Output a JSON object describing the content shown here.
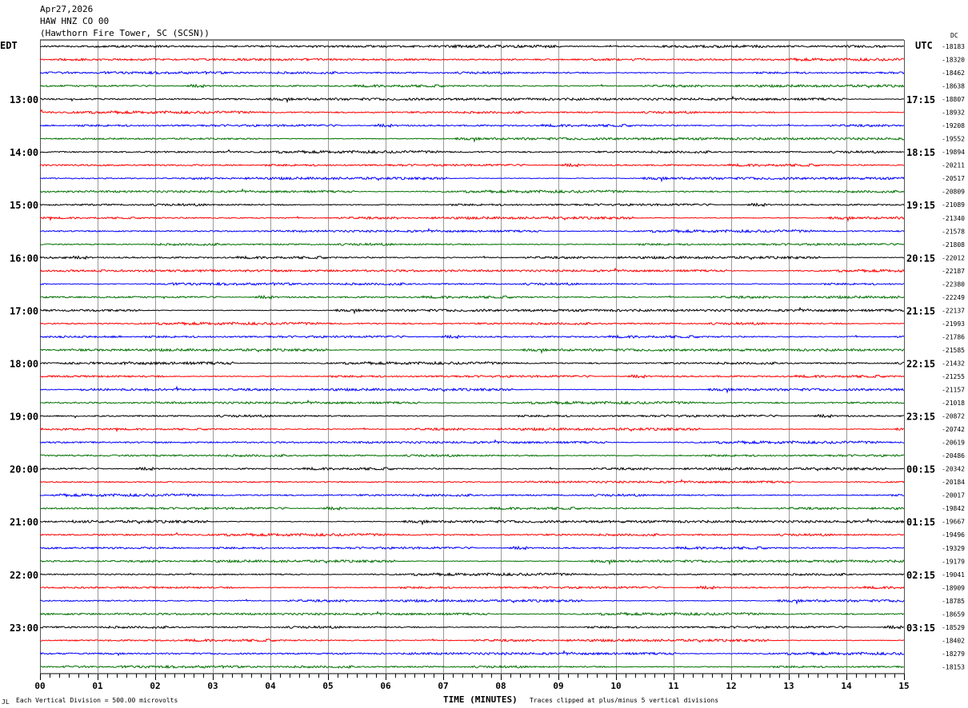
{
  "chart_data": {
    "type": "helicorder",
    "title_lines": [
      "Apr27,2026",
      "HAW HNZ CO 00",
      "(Hawthorn Fire Tower, SC (SCSN))"
    ],
    "left_timezone": "EDT",
    "right_timezone": "UTC",
    "dc_header": "DC",
    "left_hour_labels": [
      "13:00",
      "14:00",
      "15:00",
      "16:00",
      "17:00",
      "18:00",
      "19:00",
      "20:00",
      "21:00",
      "22:00",
      "23:00"
    ],
    "right_hour_labels": [
      "17:15",
      "18:15",
      "19:15",
      "20:15",
      "21:15",
      "22:15",
      "23:15",
      "00:15",
      "01:15",
      "02:15",
      "03:15"
    ],
    "traces_per_hour": 4,
    "trace_colors": [
      "#000000",
      "#ff0000",
      "#0000ff",
      "#007000"
    ],
    "dc_offsets": [
      -18183,
      -18320,
      -18462,
      -18638,
      -18807,
      -18932,
      -19208,
      -19552,
      -19894,
      -20211,
      -20517,
      -20809,
      -21089,
      -21340,
      -21578,
      -21808,
      -22012,
      -22187,
      -22380,
      -22249,
      -22137,
      -21993,
      -21786,
      -21585,
      -21432,
      -21255,
      -21157,
      -21018,
      -20872,
      -20742,
      -20619,
      -20486,
      -20342,
      -20184,
      -20017,
      -19842,
      -19667,
      -19496,
      -19329,
      -19179,
      -19041,
      -18909,
      -18785,
      -18659,
      -18529,
      -18402,
      -18279,
      -18153
    ],
    "x_ticks": [
      "00",
      "01",
      "02",
      "03",
      "04",
      "05",
      "06",
      "07",
      "08",
      "09",
      "10",
      "11",
      "12",
      "13",
      "14",
      "15"
    ],
    "xlim": [
      0,
      15
    ],
    "xlabel": "TIME (MINUTES)",
    "grid": true,
    "scale_note": "Each Vertical Division =  500.00 microvolts",
    "clip_note": "Traces clipped at plus/minus 5 vertical divisions",
    "corner_mark": "JL"
  }
}
